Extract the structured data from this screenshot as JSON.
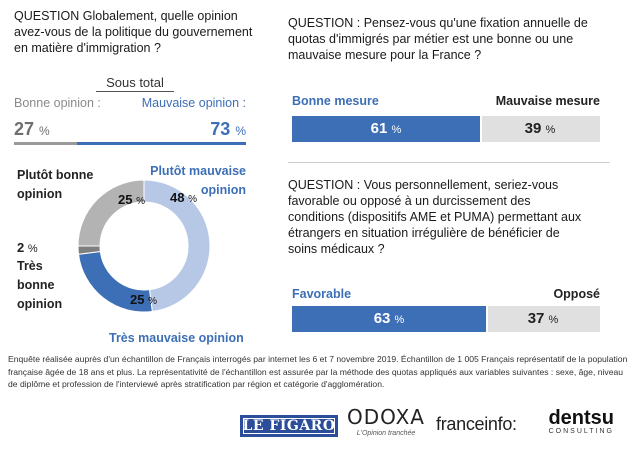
{
  "q1": {
    "question": "QUESTION Globalement, quelle opinion avez-vous de la politique du gouvernement en matière d'immigration ?",
    "subtotal_title": "Sous total",
    "bonne_label": "Bonne opinion :",
    "mauvaise_label": "Mauvaise opinion :",
    "bonne_value": "27",
    "mauvaise_value": "73",
    "pct_sign": "%",
    "colors": {
      "bonne": "#9a9a9a",
      "mauvaise": "#3d6fb6"
    }
  },
  "donut_labels": {
    "plutot_bonne": "Plutôt bonne opinion",
    "plutot_mauvaise": "Plutôt mauvaise opinion",
    "tres_bonne_pct": "2",
    "tres_bonne": "Très bonne opinion",
    "tres_mauvaise": "Très mauvaise opinion"
  },
  "q2": {
    "question": "QUESTION : Pensez-vous qu'une fixation annuelle de quotas d'immigrés par métier est une bonne ou une mauvaise mesure pour la France ?",
    "left_label": "Bonne mesure",
    "right_label": "Mauvaise mesure"
  },
  "q3": {
    "question": "QUESTION : Vous personnellement, seriez-vous favorable ou opposé à un durcissement des conditions (dispositifs AME et PUMA) permettant aux étrangers en situation irrégulière de bénéficier de soins médicaux ?",
    "left_label": "Favorable",
    "right_label": "Opposé"
  },
  "footnote": "Enquête réalisée auprès d'un échantillon de Français interrogés par internet les 6 et 7 novembre 2019. Échantillon de 1 005 Français représentatif de la population française âgée de 18 ans et plus. La représentativité de l'échantillon est assurée par la méthode des quotas appliqués aux variables suivantes : sexe, âge, niveau de diplôme et profession de l'interviewé après stratification par région et catégorie d'agglomération.",
  "logos": {
    "figaro": "LE FIGARO",
    "odoxa": "ODOXA",
    "odoxa_tag": "L'Opinion tranchée",
    "franceinfo": "franceinfo:",
    "dentsu": "dentsu",
    "dentsu_sub": "CONSULTING"
  },
  "chart_data": [
    {
      "type": "pie",
      "title": "",
      "categories": [
        "Plutôt mauvaise opinion",
        "Très mauvaise opinion",
        "Très bonne opinion",
        "Plutôt bonne opinion"
      ],
      "values": [
        48,
        25,
        2,
        25
      ],
      "colors": [
        "#b7c8e6",
        "#3d6fb6",
        "#7f7f7f",
        "#b3b3b3"
      ],
      "unit": "%"
    },
    {
      "type": "bar",
      "title": "Pensez-vous qu'une fixation annuelle de quotas d'immigrés par métier est une bonne ou une mauvaise mesure pour la France ?",
      "categories": [
        "Bonne mesure",
        "Mauvaise mesure"
      ],
      "values": [
        61,
        39
      ],
      "colors": [
        "#3d6fb6",
        "#e0e0e0"
      ],
      "unit": "%"
    },
    {
      "type": "bar",
      "title": "Seriez-vous favorable ou opposé à un durcissement des conditions (dispositifs AME et PUMA) ?",
      "categories": [
        "Favorable",
        "Opposé"
      ],
      "values": [
        63,
        37
      ],
      "colors": [
        "#3d6fb6",
        "#e0e0e0"
      ],
      "unit": "%"
    }
  ]
}
